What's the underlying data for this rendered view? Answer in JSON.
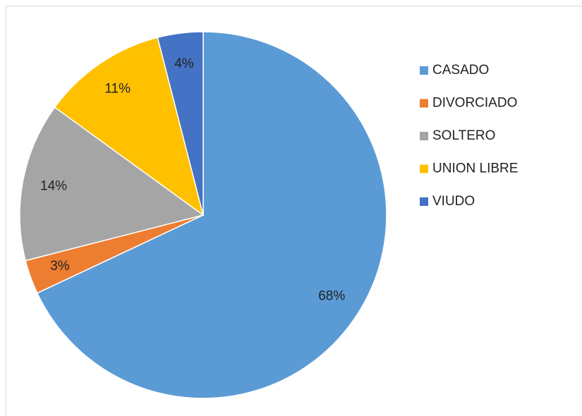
{
  "chart_data": {
    "type": "pie",
    "categories": [
      "CASADO",
      "DIVORCIADO",
      "SOLTERO",
      "UNION LIBRE",
      "VIUDO"
    ],
    "values": [
      68,
      3,
      14,
      11,
      4
    ],
    "value_labels": [
      "68%",
      "3%",
      "14%",
      "11%",
      "4%"
    ],
    "colors": [
      "#5b9bd5",
      "#ed7d31",
      "#a5a5a5",
      "#ffc000",
      "#4472c4"
    ],
    "legend": "right"
  }
}
